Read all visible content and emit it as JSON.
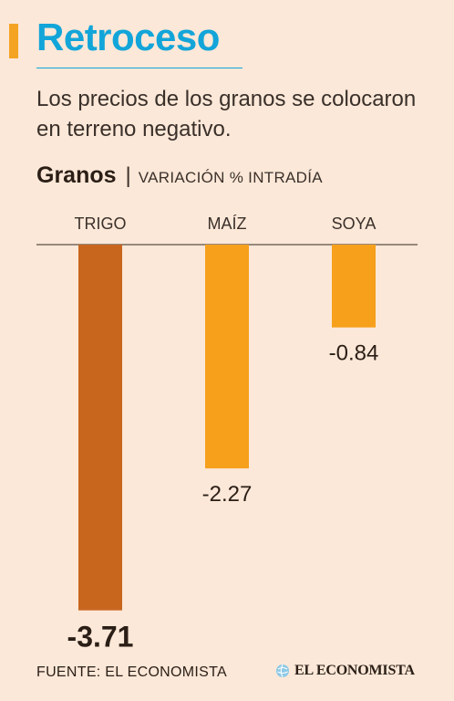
{
  "header": {
    "title": "Retroceso",
    "subtitle": "Los precios de los granos se colocaron en terreno negativo."
  },
  "legend": {
    "series_name": "Granos",
    "separator": "|",
    "description": "VARIACIÓN % INTRADÍA"
  },
  "colors": {
    "title": "#12a5d9",
    "accent": "#f4a323",
    "bar_highlight": "#c8661e",
    "bar_default": "#f6a01c",
    "background": "#fce8d8"
  },
  "chart_data": {
    "type": "bar",
    "categories": [
      "TRIGO",
      "MAÍZ",
      "SOYA"
    ],
    "values": [
      -3.71,
      -2.27,
      -0.84
    ],
    "value_labels": [
      "-3.71",
      "-2.27",
      "-0.84"
    ],
    "series": [
      {
        "name": "Granos",
        "values": [
          -3.71,
          -2.27,
          -0.84
        ]
      }
    ],
    "ylabel": "VARIACIÓN % INTRADÍA",
    "ylim": [
      -3.71,
      0
    ],
    "grid": false,
    "highlighted_category": "TRIGO"
  },
  "footer": {
    "source": "FUENTE: EL ECONOMISTA",
    "logo_text": "EL ECONOMISTA"
  }
}
